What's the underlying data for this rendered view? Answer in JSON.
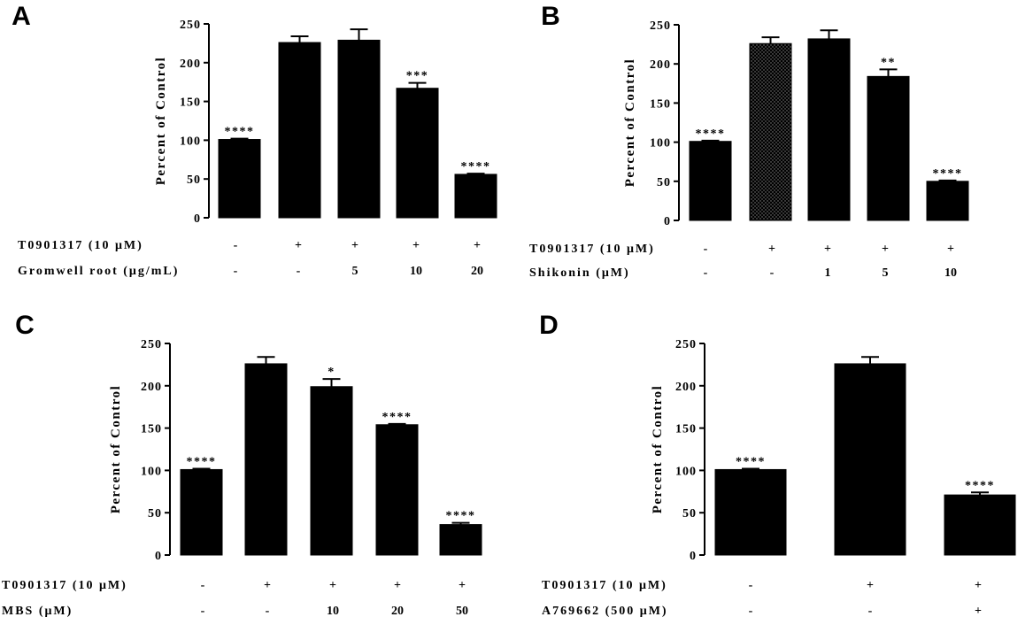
{
  "chart_data": [
    {
      "panel": "A",
      "type": "bar",
      "ylabel": "Percent of Control",
      "ylim": [
        0,
        250
      ],
      "yticks": [
        0,
        50,
        100,
        150,
        200,
        250
      ],
      "values": [
        101,
        226,
        229,
        167,
        56
      ],
      "errors": [
        1,
        8,
        14,
        7,
        1
      ],
      "significance": [
        "****",
        "",
        "",
        "***",
        "****"
      ],
      "fills": [
        "solid",
        "solid",
        "solid",
        "solid",
        "solid"
      ],
      "conditions": [
        {
          "label": "T0901317 (10 μM)",
          "values": [
            "-",
            "+",
            "+",
            "+",
            "+"
          ]
        },
        {
          "label": "Gromwell root (μg/mL)",
          "values": [
            "-",
            "-",
            "5",
            "10",
            "20"
          ]
        }
      ]
    },
    {
      "panel": "B",
      "type": "bar",
      "ylabel": "Percent of Control",
      "ylim": [
        0,
        250
      ],
      "yticks": [
        0,
        50,
        100,
        150,
        200,
        250
      ],
      "values": [
        101,
        226,
        232,
        184,
        50
      ],
      "errors": [
        1,
        8,
        11,
        9,
        1
      ],
      "significance": [
        "****",
        "",
        "",
        "**",
        "****"
      ],
      "fills": [
        "solid",
        "dotted",
        "solid",
        "solid",
        "solid"
      ],
      "conditions": [
        {
          "label": "T0901317 (10 μM)",
          "values": [
            "-",
            "+",
            "+",
            "+",
            "+"
          ]
        },
        {
          "label": "Shikonin (μM)",
          "values": [
            "-",
            "-",
            "1",
            "5",
            "10"
          ]
        }
      ]
    },
    {
      "panel": "C",
      "type": "bar",
      "ylabel": "Percent of Control",
      "ylim": [
        0,
        250
      ],
      "yticks": [
        0,
        50,
        100,
        150,
        200,
        250
      ],
      "values": [
        101,
        226,
        199,
        154,
        36
      ],
      "errors": [
        1,
        8,
        9,
        1,
        2
      ],
      "significance": [
        "****",
        "",
        "*",
        "****",
        "****"
      ],
      "fills": [
        "solid",
        "solid",
        "solid",
        "solid",
        "solid"
      ],
      "conditions": [
        {
          "label": "T0901317 (10 μM)",
          "values": [
            "-",
            "+",
            "+",
            "+",
            "+"
          ]
        },
        {
          "label": "MBS (μM)",
          "values": [
            "-",
            "-",
            "10",
            "20",
            "50"
          ]
        }
      ]
    },
    {
      "panel": "D",
      "type": "bar",
      "ylabel": "Percent of Control",
      "ylim": [
        0,
        250
      ],
      "yticks": [
        0,
        50,
        100,
        150,
        200,
        250
      ],
      "values": [
        101,
        226,
        71
      ],
      "errors": [
        1,
        8,
        3
      ],
      "significance": [
        "****",
        "",
        "****"
      ],
      "fills": [
        "solid",
        "solid",
        "solid"
      ],
      "conditions": [
        {
          "label": "T0901317 (10 μM)",
          "values": [
            "-",
            "+",
            "+"
          ]
        },
        {
          "label": "A769662 (500 μM)",
          "values": [
            "-",
            "-",
            "+"
          ]
        }
      ]
    }
  ]
}
